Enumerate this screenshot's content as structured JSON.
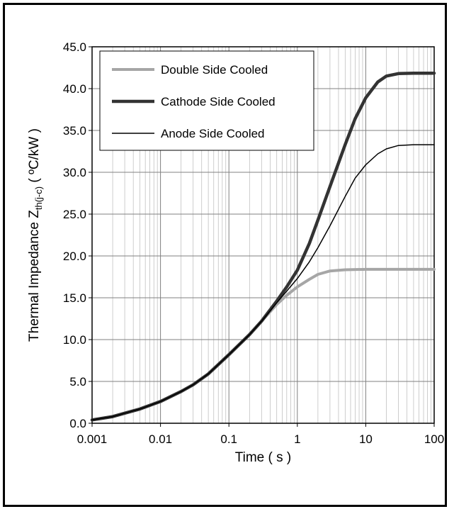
{
  "chart_data": {
    "type": "line",
    "xscale": "log",
    "xlim": [
      0.001,
      100
    ],
    "ylim": [
      0,
      45
    ],
    "grid": true,
    "legend_placement": "top-left",
    "xlabel": "Time ( s )",
    "ylabel": {
      "prefix": "Thermal Impedance  Z",
      "subscript": "th(j-c)",
      "suffix": " ( ºC/kW )"
    },
    "x_tick_labels": [
      "0.001",
      "0.01",
      "0.1",
      "1",
      "10",
      "100"
    ],
    "y_tick_labels": [
      "0.0",
      "5.0",
      "10.0",
      "15.0",
      "20.0",
      "25.0",
      "30.0",
      "35.0",
      "40.0",
      "45.0"
    ],
    "series": [
      {
        "name": "Double Side Cooled",
        "color": "#a6a6a6",
        "points": [
          [
            0.001,
            0.4
          ],
          [
            0.002,
            0.8
          ],
          [
            0.003,
            1.2
          ],
          [
            0.005,
            1.7
          ],
          [
            0.01,
            2.6
          ],
          [
            0.02,
            3.8
          ],
          [
            0.03,
            4.6
          ],
          [
            0.05,
            5.9
          ],
          [
            0.1,
            8.2
          ],
          [
            0.2,
            10.6
          ],
          [
            0.3,
            12.2
          ],
          [
            0.5,
            14.2
          ],
          [
            0.7,
            15.3
          ],
          [
            1,
            16.3
          ],
          [
            1.5,
            17.2
          ],
          [
            2,
            17.8
          ],
          [
            3,
            18.2
          ],
          [
            5,
            18.35
          ],
          [
            10,
            18.4
          ],
          [
            100,
            18.4
          ]
        ]
      },
      {
        "name": "Cathode Side Cooled",
        "color": "#333333",
        "points": [
          [
            0.001,
            0.4
          ],
          [
            0.002,
            0.8
          ],
          [
            0.003,
            1.2
          ],
          [
            0.005,
            1.7
          ],
          [
            0.01,
            2.6
          ],
          [
            0.02,
            3.8
          ],
          [
            0.03,
            4.6
          ],
          [
            0.05,
            5.9
          ],
          [
            0.1,
            8.2
          ],
          [
            0.2,
            10.6
          ],
          [
            0.3,
            12.2
          ],
          [
            0.5,
            14.6
          ],
          [
            0.7,
            16.3
          ],
          [
            1,
            18.3
          ],
          [
            1.5,
            21.5
          ],
          [
            2,
            24.3
          ],
          [
            3,
            28.3
          ],
          [
            5,
            33.3
          ],
          [
            7,
            36.4
          ],
          [
            10,
            38.9
          ],
          [
            15,
            40.8
          ],
          [
            20,
            41.5
          ],
          [
            30,
            41.8
          ],
          [
            50,
            41.85
          ],
          [
            100,
            41.85
          ]
        ]
      },
      {
        "name": "Anode Side Cooled",
        "color": "#000000",
        "points": [
          [
            0.001,
            0.4
          ],
          [
            0.002,
            0.8
          ],
          [
            0.003,
            1.2
          ],
          [
            0.005,
            1.7
          ],
          [
            0.01,
            2.6
          ],
          [
            0.02,
            3.8
          ],
          [
            0.03,
            4.6
          ],
          [
            0.05,
            5.9
          ],
          [
            0.1,
            8.2
          ],
          [
            0.2,
            10.6
          ],
          [
            0.3,
            12.2
          ],
          [
            0.5,
            14.4
          ],
          [
            0.7,
            15.8
          ],
          [
            1,
            17.3
          ],
          [
            1.5,
            19.3
          ],
          [
            2,
            21.0
          ],
          [
            3,
            23.6
          ],
          [
            5,
            27.1
          ],
          [
            7,
            29.3
          ],
          [
            10,
            30.9
          ],
          [
            15,
            32.2
          ],
          [
            20,
            32.8
          ],
          [
            30,
            33.2
          ],
          [
            50,
            33.3
          ],
          [
            100,
            33.3
          ]
        ]
      }
    ]
  }
}
